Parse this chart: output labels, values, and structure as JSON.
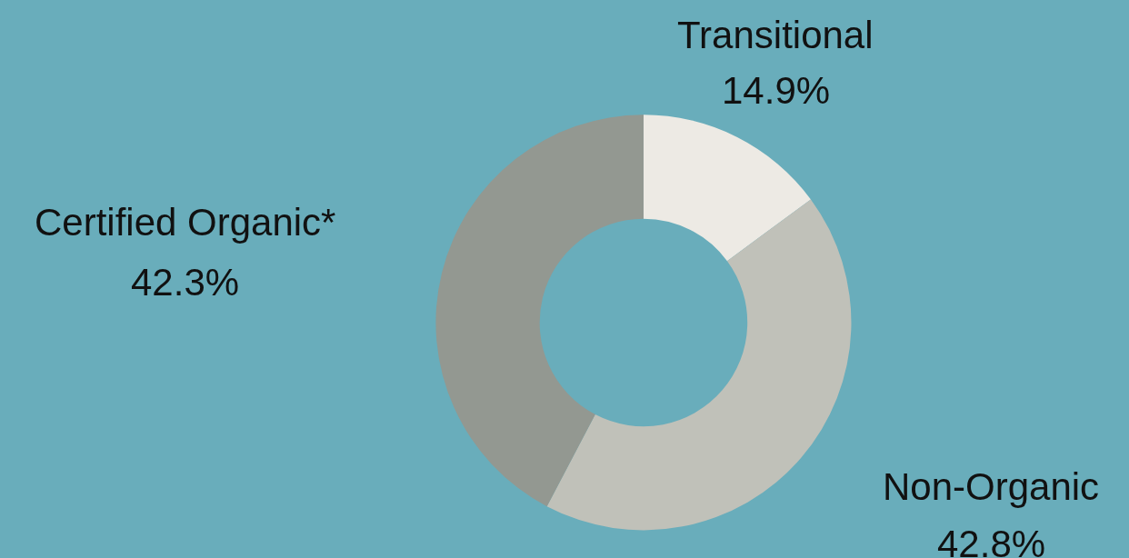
{
  "chart_data": {
    "type": "donut",
    "categories": [
      "Transitional",
      "Non-Organic",
      "Certified Organic*"
    ],
    "values": [
      14.9,
      42.8,
      42.3
    ],
    "colors": [
      "#edeae4",
      "#c0c1b9",
      "#939891"
    ],
    "value_labels": [
      "14.9%",
      "42.8%",
      "42.3%"
    ],
    "legend": false
  }
}
